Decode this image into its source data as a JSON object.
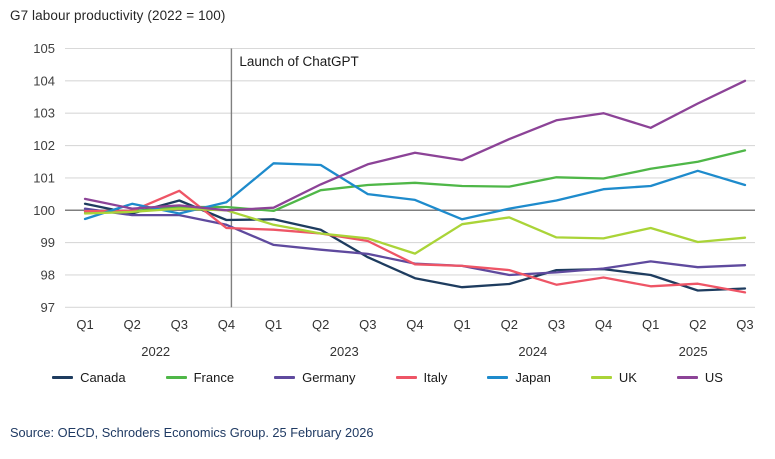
{
  "title": "G7 labour productivity (2022 = 100)",
  "source": "Source: OECD, Schroders Economics Group. 25 February 2026",
  "annotation_label": "Launch of ChatGPT",
  "colors": {
    "grid": "#d9d9d9",
    "baseline": "#7f7f7f",
    "annotation_line": "#7f7f7f",
    "tick_text": "#404040",
    "annotation_text": "#1a1a1a",
    "source_text": "#1f3a63"
  },
  "chart_data": {
    "type": "line",
    "title": "G7 labour productivity (2022 = 100)",
    "x_tick_labels": [
      "Q1",
      "Q2",
      "Q3",
      "Q4",
      "Q1",
      "Q2",
      "Q3",
      "Q4",
      "Q1",
      "Q2",
      "Q3",
      "Q4",
      "Q1",
      "Q2",
      "Q3"
    ],
    "year_labels": [
      {
        "label": "2022",
        "center_index": 1.5
      },
      {
        "label": "2023",
        "center_index": 5.5
      },
      {
        "label": "2024",
        "center_index": 9.5
      },
      {
        "label": "2025",
        "center_index": 12.9
      }
    ],
    "ylim": [
      97,
      105
    ],
    "yticks": [
      97,
      98,
      99,
      100,
      101,
      102,
      103,
      104,
      105
    ],
    "baseline_value": 100,
    "grid": true,
    "legend_position": "bottom",
    "annotation": {
      "label": "Launch of ChatGPT",
      "x_index": 3
    },
    "series": [
      {
        "name": "Canada",
        "color": "#1E3C5F",
        "values": [
          100.2,
          99.9,
          100.3,
          99.7,
          99.72,
          99.4,
          98.55,
          97.9,
          97.62,
          97.72,
          98.15,
          98.18,
          98.0,
          97.52,
          97.58
        ]
      },
      {
        "name": "France",
        "color": "#4FB748",
        "values": [
          99.95,
          99.97,
          100.1,
          100.1,
          99.98,
          100.62,
          100.78,
          100.85,
          100.75,
          100.73,
          101.02,
          100.98,
          101.28,
          101.5,
          101.85
        ]
      },
      {
        "name": "Germany",
        "color": "#5F4A9E",
        "values": [
          100.05,
          99.85,
          99.85,
          99.55,
          98.93,
          98.78,
          98.65,
          98.35,
          98.28,
          98.0,
          98.08,
          98.2,
          98.42,
          98.24,
          98.3
        ]
      },
      {
        "name": "Italy",
        "color": "#EE5566",
        "values": [
          99.97,
          99.98,
          100.6,
          99.45,
          99.4,
          99.28,
          99.05,
          98.33,
          98.28,
          98.15,
          97.7,
          97.92,
          97.65,
          97.73,
          97.46
        ]
      },
      {
        "name": "Japan",
        "color": "#1E8BCC",
        "values": [
          99.73,
          100.2,
          99.9,
          100.25,
          101.45,
          101.4,
          100.5,
          100.32,
          99.72,
          100.05,
          100.3,
          100.65,
          100.75,
          101.22,
          100.78
        ]
      },
      {
        "name": "UK",
        "color": "#AAD438",
        "values": [
          99.9,
          99.95,
          100.05,
          100.0,
          99.55,
          99.28,
          99.13,
          98.66,
          99.57,
          99.78,
          99.16,
          99.13,
          99.45,
          99.02,
          99.15
        ]
      },
      {
        "name": "US",
        "color": "#8C4397",
        "values": [
          100.35,
          100.05,
          100.15,
          100.0,
          100.08,
          100.8,
          101.42,
          101.78,
          101.55,
          102.2,
          102.78,
          103.0,
          102.55,
          103.3,
          104.0
        ]
      }
    ]
  }
}
